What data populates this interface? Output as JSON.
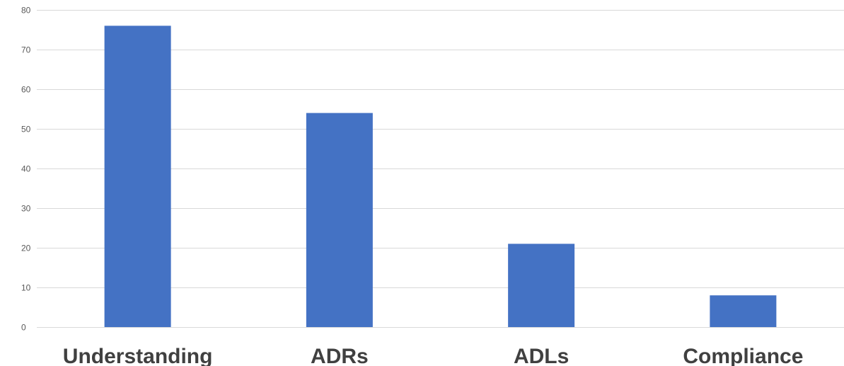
{
  "chart_data": {
    "type": "bar",
    "categories": [
      "Understanding",
      "ADRs",
      "ADLs",
      "Compliance"
    ],
    "values": [
      76,
      54,
      21,
      8
    ],
    "ylim": [
      0,
      80
    ],
    "yticks": [
      0,
      10,
      20,
      30,
      40,
      50,
      60,
      70,
      80
    ],
    "bar_color": "#4472C4",
    "grid": true,
    "title": "",
    "xlabel": "",
    "ylabel": ""
  }
}
